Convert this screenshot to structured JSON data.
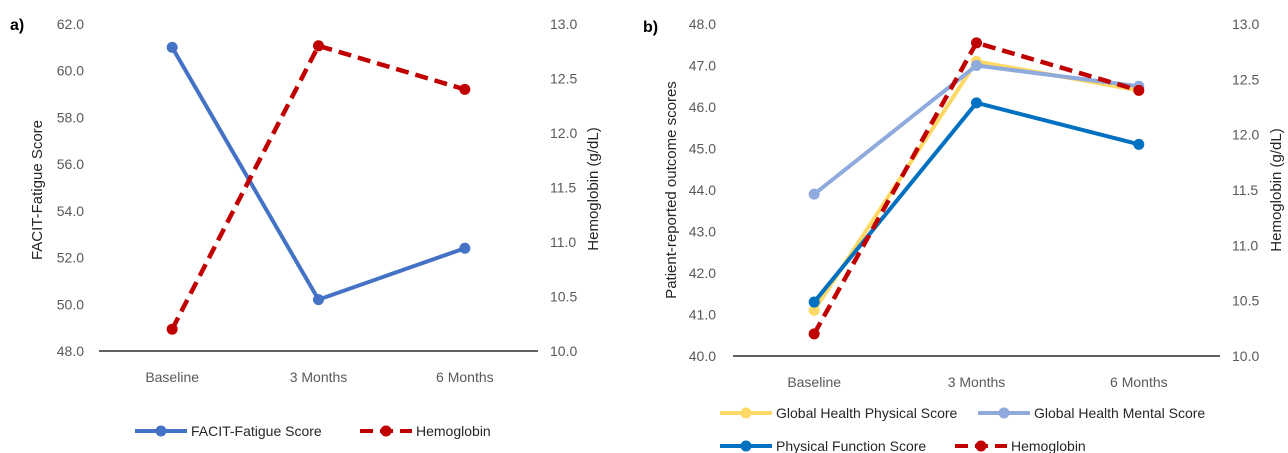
{
  "chart_data": [
    {
      "type": "line",
      "panel_label": "a)",
      "categories": [
        "Baseline",
        "3 Months",
        "6 Months"
      ],
      "ylabel": "FACIT-Fatigue Score",
      "ylim": [
        48.0,
        62.0
      ],
      "yticks": [
        "48.0",
        "50.0",
        "52.0",
        "54.0",
        "56.0",
        "58.0",
        "60.0",
        "62.0"
      ],
      "y2label": "Hemoglobin (g/dL)",
      "y2lim": [
        10.0,
        13.0
      ],
      "y2ticks": [
        "10.0",
        "10.5",
        "11.0",
        "11.5",
        "12.0",
        "12.5",
        "13.0"
      ],
      "legend_position": "bottom",
      "series": [
        {
          "name": "FACIT-Fatigue Score",
          "axis": "left",
          "values": [
            61.0,
            50.2,
            52.4
          ],
          "color": "#4472C4",
          "dashed": false
        },
        {
          "name": "Hemoglobin",
          "axis": "right",
          "values": [
            10.2,
            12.8,
            12.4
          ],
          "color": "#C00000",
          "dashed": true
        }
      ]
    },
    {
      "type": "line",
      "panel_label": "b)",
      "categories": [
        "Baseline",
        "3 Months",
        "6 Months"
      ],
      "ylabel": "Patient-reported outcome scores",
      "ylim": [
        40.0,
        48.0
      ],
      "yticks": [
        "40.0",
        "41.0",
        "42.0",
        "43.0",
        "44.0",
        "45.0",
        "46.0",
        "47.0",
        "48.0"
      ],
      "y2label": "Hemoglobin (g/dL)",
      "y2lim": [
        10.0,
        13.0
      ],
      "y2ticks": [
        "10.0",
        "10.5",
        "11.0",
        "11.5",
        "12.0",
        "12.5",
        "13.0"
      ],
      "legend_position": "bottom",
      "series": [
        {
          "name": "Global Health Physical Score",
          "axis": "left",
          "values": [
            41.1,
            47.1,
            46.4
          ],
          "color": "#FFD966",
          "dashed": false
        },
        {
          "name": "Global Health Mental Score",
          "axis": "left",
          "values": [
            43.9,
            47.0,
            46.5
          ],
          "color": "#8FAADC",
          "dashed": false
        },
        {
          "name": "Physical Function Score",
          "axis": "left",
          "values": [
            41.3,
            46.1,
            45.1
          ],
          "color": "#0070C0",
          "dashed": false
        },
        {
          "name": "Hemoglobin",
          "axis": "right",
          "values": [
            10.2,
            12.83,
            12.4
          ],
          "color": "#C00000",
          "dashed": true
        }
      ]
    }
  ]
}
